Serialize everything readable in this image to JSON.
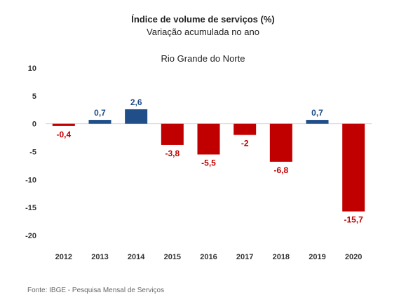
{
  "header": {
    "title": "Índice de volume de serviços (%)",
    "subtitle": "Variação acumulada no ano",
    "region": "Rio Grande do Norte"
  },
  "footer": {
    "source": "Fonte: IBGE - Pesquisa Mensal de Serviços"
  },
  "colors": {
    "positive": "#1f4e89",
    "negative": "#c00000",
    "axis": "#d0d0d0",
    "tick_text": "#333333"
  },
  "chart_data": {
    "type": "bar",
    "title": "Índice de volume de serviços (%)",
    "subtitle": "Variação acumulada no ano",
    "xlabel": "",
    "ylabel": "",
    "categories": [
      "2012",
      "2013",
      "2014",
      "2015",
      "2016",
      "2017",
      "2018",
      "2019",
      "2020"
    ],
    "values": [
      -0.4,
      0.7,
      2.6,
      -3.8,
      -5.5,
      -2,
      -6.8,
      0.7,
      -15.7
    ],
    "data_labels": [
      "-0,4",
      "0,7",
      "2,6",
      "-3,8",
      "-5,5",
      "-2",
      "-6,8",
      "0,7",
      "-15,7"
    ],
    "ylim": [
      -20,
      10
    ],
    "yticks": [
      10,
      5,
      0,
      -5,
      -10,
      -15,
      -20
    ],
    "grid": false,
    "legend": "none"
  }
}
